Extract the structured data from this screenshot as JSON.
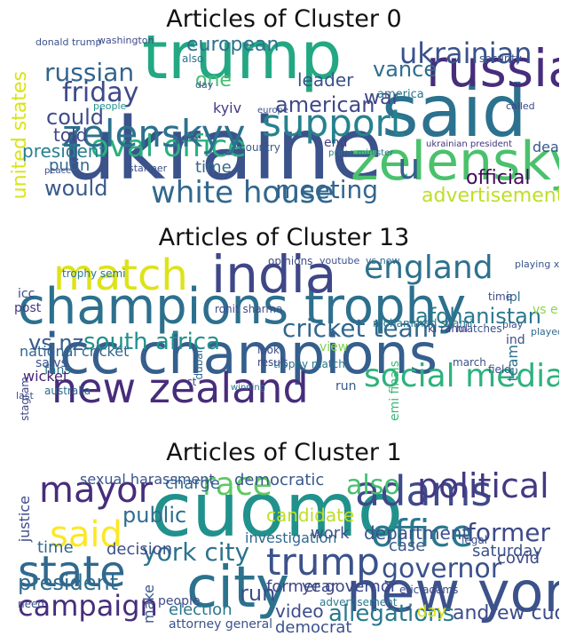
{
  "panels": [
    {
      "title": "Articles of Cluster 0",
      "words": [
        {
          "text": "trump",
          "c": "#23a883"
        },
        {
          "text": "said",
          "c": "#2c728e"
        },
        {
          "text": "ukraine",
          "c": "#3b528b"
        },
        {
          "text": "zelensky",
          "c": "#4ac16d"
        },
        {
          "text": "russia",
          "c": "#472d7b"
        },
        {
          "text": "white house",
          "c": "#31688e"
        },
        {
          "text": "oval office",
          "c": "#2ab07f"
        },
        {
          "text": "zelenskyy",
          "c": "#2c728e"
        },
        {
          "text": "support",
          "c": "#26828e"
        },
        {
          "text": "russian",
          "c": "#32648e"
        },
        {
          "text": "friday",
          "c": "#3e4a89"
        },
        {
          "text": "ukrainian",
          "c": "#3b518b"
        },
        {
          "text": "meeting",
          "c": "#32658e"
        },
        {
          "text": "war",
          "c": "#3f4788"
        },
        {
          "text": "would",
          "c": "#375a8c"
        },
        {
          "text": "united states",
          "c": "#dae319"
        },
        {
          "text": "u",
          "c": "#35608d"
        },
        {
          "text": "vance",
          "c": "#2e6e8e"
        },
        {
          "text": "advertisement",
          "c": "#bddf26"
        },
        {
          "text": "official",
          "c": "#46085c"
        },
        {
          "text": "american",
          "c": "#3f4889"
        },
        {
          "text": "could",
          "c": "#3e4c8a"
        },
        {
          "text": "told",
          "c": "#404588"
        },
        {
          "text": "leader",
          "c": "#3a538b"
        },
        {
          "text": "european",
          "c": "#2d718e"
        },
        {
          "text": "president",
          "c": "#277f8e"
        },
        {
          "text": "putin",
          "c": "#31668e"
        },
        {
          "text": "one",
          "c": "#44bf70"
        },
        {
          "text": "time",
          "c": "#31688e"
        },
        {
          "text": "kyiv",
          "c": "#443983"
        },
        {
          "text": "deal",
          "c": "#38598c"
        },
        {
          "text": "end",
          "c": "#433e85"
        },
        {
          "text": "country",
          "c": "#38588c"
        },
        {
          "text": "ukrainian president",
          "c": "#46337f"
        },
        {
          "text": "prime minister",
          "c": "#2a788e"
        },
        {
          "text": "peace",
          "c": "#3c4f8a"
        },
        {
          "text": "starmer",
          "c": "#3c508b"
        },
        {
          "text": "donald trump",
          "c": "#3b528b"
        },
        {
          "text": "washington",
          "c": "#3e4a89"
        },
        {
          "text": "europe",
          "c": "#3a548c"
        },
        {
          "text": "day",
          "c": "#3b528b"
        },
        {
          "text": "also",
          "c": "#2d708e"
        },
        {
          "text": "people",
          "c": "#20928c"
        },
        {
          "text": "made",
          "c": "#3e4c8a"
        },
        {
          "text": "security",
          "c": "#39568c"
        },
        {
          "text": "america",
          "c": "#2b748e"
        },
        {
          "text": "called",
          "c": "#3e4989"
        }
      ]
    },
    {
      "title": "Articles of Cluster 13",
      "words": [
        {
          "text": "champions trophy",
          "c": "#2d708e"
        },
        {
          "text": "icc champions",
          "c": "#355f8d"
        },
        {
          "text": "india",
          "c": "#3f4788"
        },
        {
          "text": "new zealand",
          "c": "#472d7b"
        },
        {
          "text": "match",
          "c": "#dde318"
        },
        {
          "text": "social media",
          "c": "#2db27d"
        },
        {
          "text": "england",
          "c": "#2d718e"
        },
        {
          "text": "cricket team",
          "c": "#31678e"
        },
        {
          "text": "south africa",
          "c": "#21918c"
        },
        {
          "text": "afghanistan",
          "c": "#2a778e"
        },
        {
          "text": "vs nz",
          "c": "#38598c"
        },
        {
          "text": "national cricket",
          "c": "#32658e"
        },
        {
          "text": "view",
          "c": "#7fd34e"
        },
        {
          "text": "fans",
          "c": "#2c738e"
        },
        {
          "text": "wicket",
          "c": "#482475"
        },
        {
          "text": "post",
          "c": "#453781"
        },
        {
          "text": "icc",
          "c": "#3e4a89"
        },
        {
          "text": "trophy semi",
          "c": "#2a788e"
        },
        {
          "text": "ipl",
          "c": "#2e6d8e"
        },
        {
          "text": "vs eng",
          "c": "#8bd646"
        },
        {
          "text": "ind",
          "c": "#3c4f8a"
        },
        {
          "text": "sa vs",
          "c": "#3b528b"
        },
        {
          "text": "semi finals",
          "c": "#3aba76"
        },
        {
          "text": "rohit sharma",
          "c": "#3e4c8a"
        },
        {
          "text": "kl rahul",
          "c": "#443983"
        },
        {
          "text": "mohammed shami",
          "c": "#2a788e"
        },
        {
          "text": "matches",
          "c": "#3b528b"
        },
        {
          "text": "time",
          "c": "#3e4c8a"
        },
        {
          "text": "run",
          "c": "#39568c"
        },
        {
          "text": "team",
          "c": "#2d718e"
        },
        {
          "text": "march",
          "c": "#3b528b"
        },
        {
          "text": "trophy match",
          "c": "#2b758e"
        },
        {
          "text": "look",
          "c": "#3c4f8a"
        },
        {
          "text": "result",
          "c": "#3e4989"
        },
        {
          "text": "ct",
          "c": "#404588"
        },
        {
          "text": "dubai",
          "c": "#31688e"
        },
        {
          "text": "australia",
          "c": "#2f6b8e"
        },
        {
          "text": "instagram",
          "c": "#404588"
        },
        {
          "text": "opinions",
          "c": "#3e4a89"
        },
        {
          "text": "youtube",
          "c": "#3b528b"
        },
        {
          "text": "vs new",
          "c": "#31688e"
        },
        {
          "text": "playing xi",
          "c": "#39568c"
        },
        {
          "text": "play",
          "c": "#3c4f8a"
        },
        {
          "text": "played",
          "c": "#31688e"
        },
        {
          "text": "field",
          "c": "#3e4c8a"
        },
        {
          "text": "last",
          "c": "#3b528b"
        },
        {
          "text": "winning",
          "c": "#2a788e"
        }
      ]
    },
    {
      "title": "Articles of Cluster 1",
      "words": [
        {
          "text": "cuomo",
          "c": "#21918c"
        },
        {
          "text": "new york",
          "c": "#3b528b"
        },
        {
          "text": "city",
          "c": "#2c728e"
        },
        {
          "text": "state",
          "c": "#31688e"
        },
        {
          "text": "adams",
          "c": "#3e4a89"
        },
        {
          "text": "mayor",
          "c": "#472d7b"
        },
        {
          "text": "race",
          "c": "#5ec962"
        },
        {
          "text": "said",
          "c": "#fde725"
        },
        {
          "text": "office",
          "c": "#2a788e"
        },
        {
          "text": "political",
          "c": "#443983"
        },
        {
          "text": "also",
          "c": "#44bf70"
        },
        {
          "text": "trump",
          "c": "#3b528b"
        },
        {
          "text": "york city",
          "c": "#2c738e"
        },
        {
          "text": "campaign",
          "c": "#472d7b"
        },
        {
          "text": "governor",
          "c": "#3b528b"
        },
        {
          "text": "former",
          "c": "#3e4989"
        },
        {
          "text": "president",
          "c": "#2f6c8e"
        },
        {
          "text": "allegations",
          "c": "#2a788e"
        },
        {
          "text": "andrew cuomo",
          "c": "#3e4c8a"
        },
        {
          "text": "public",
          "c": "#2e6e8e"
        },
        {
          "text": "charge",
          "c": "#32658e"
        },
        {
          "text": "democratic",
          "c": "#38598c"
        },
        {
          "text": "candidate",
          "c": "#bddf26"
        },
        {
          "text": "department",
          "c": "#3b528b"
        },
        {
          "text": "election",
          "c": "#2a788e"
        },
        {
          "text": "video",
          "c": "#3e4c8a"
        },
        {
          "text": "former governor",
          "c": "#3f4788"
        },
        {
          "text": "sexual harassment",
          "c": "#39568c"
        },
        {
          "text": "decision",
          "c": "#3c4f8a"
        },
        {
          "text": "time",
          "c": "#31688e"
        },
        {
          "text": "justice",
          "c": "#3e4a89"
        },
        {
          "text": "saturday",
          "c": "#3b528b"
        },
        {
          "text": "covid",
          "c": "#3e4c8a"
        },
        {
          "text": "case",
          "c": "#38598c"
        },
        {
          "text": "work",
          "c": "#3c4f8a"
        },
        {
          "text": "year",
          "c": "#3e4a89"
        },
        {
          "text": "democrat",
          "c": "#3b528b"
        },
        {
          "text": "day",
          "c": "#dde318"
        },
        {
          "text": "advertisement",
          "c": "#2a788e"
        },
        {
          "text": "eric adams",
          "c": "#3e4989"
        },
        {
          "text": "investigation",
          "c": "#31688e"
        },
        {
          "text": "legal",
          "c": "#3b528b"
        },
        {
          "text": "run",
          "c": "#3e4c8a"
        },
        {
          "text": "make",
          "c": "#39568c"
        },
        {
          "text": "need",
          "c": "#3c4f8a"
        },
        {
          "text": "attorney general",
          "c": "#3b528b"
        },
        {
          "text": "people",
          "c": "#3e4a89"
        }
      ]
    }
  ]
}
